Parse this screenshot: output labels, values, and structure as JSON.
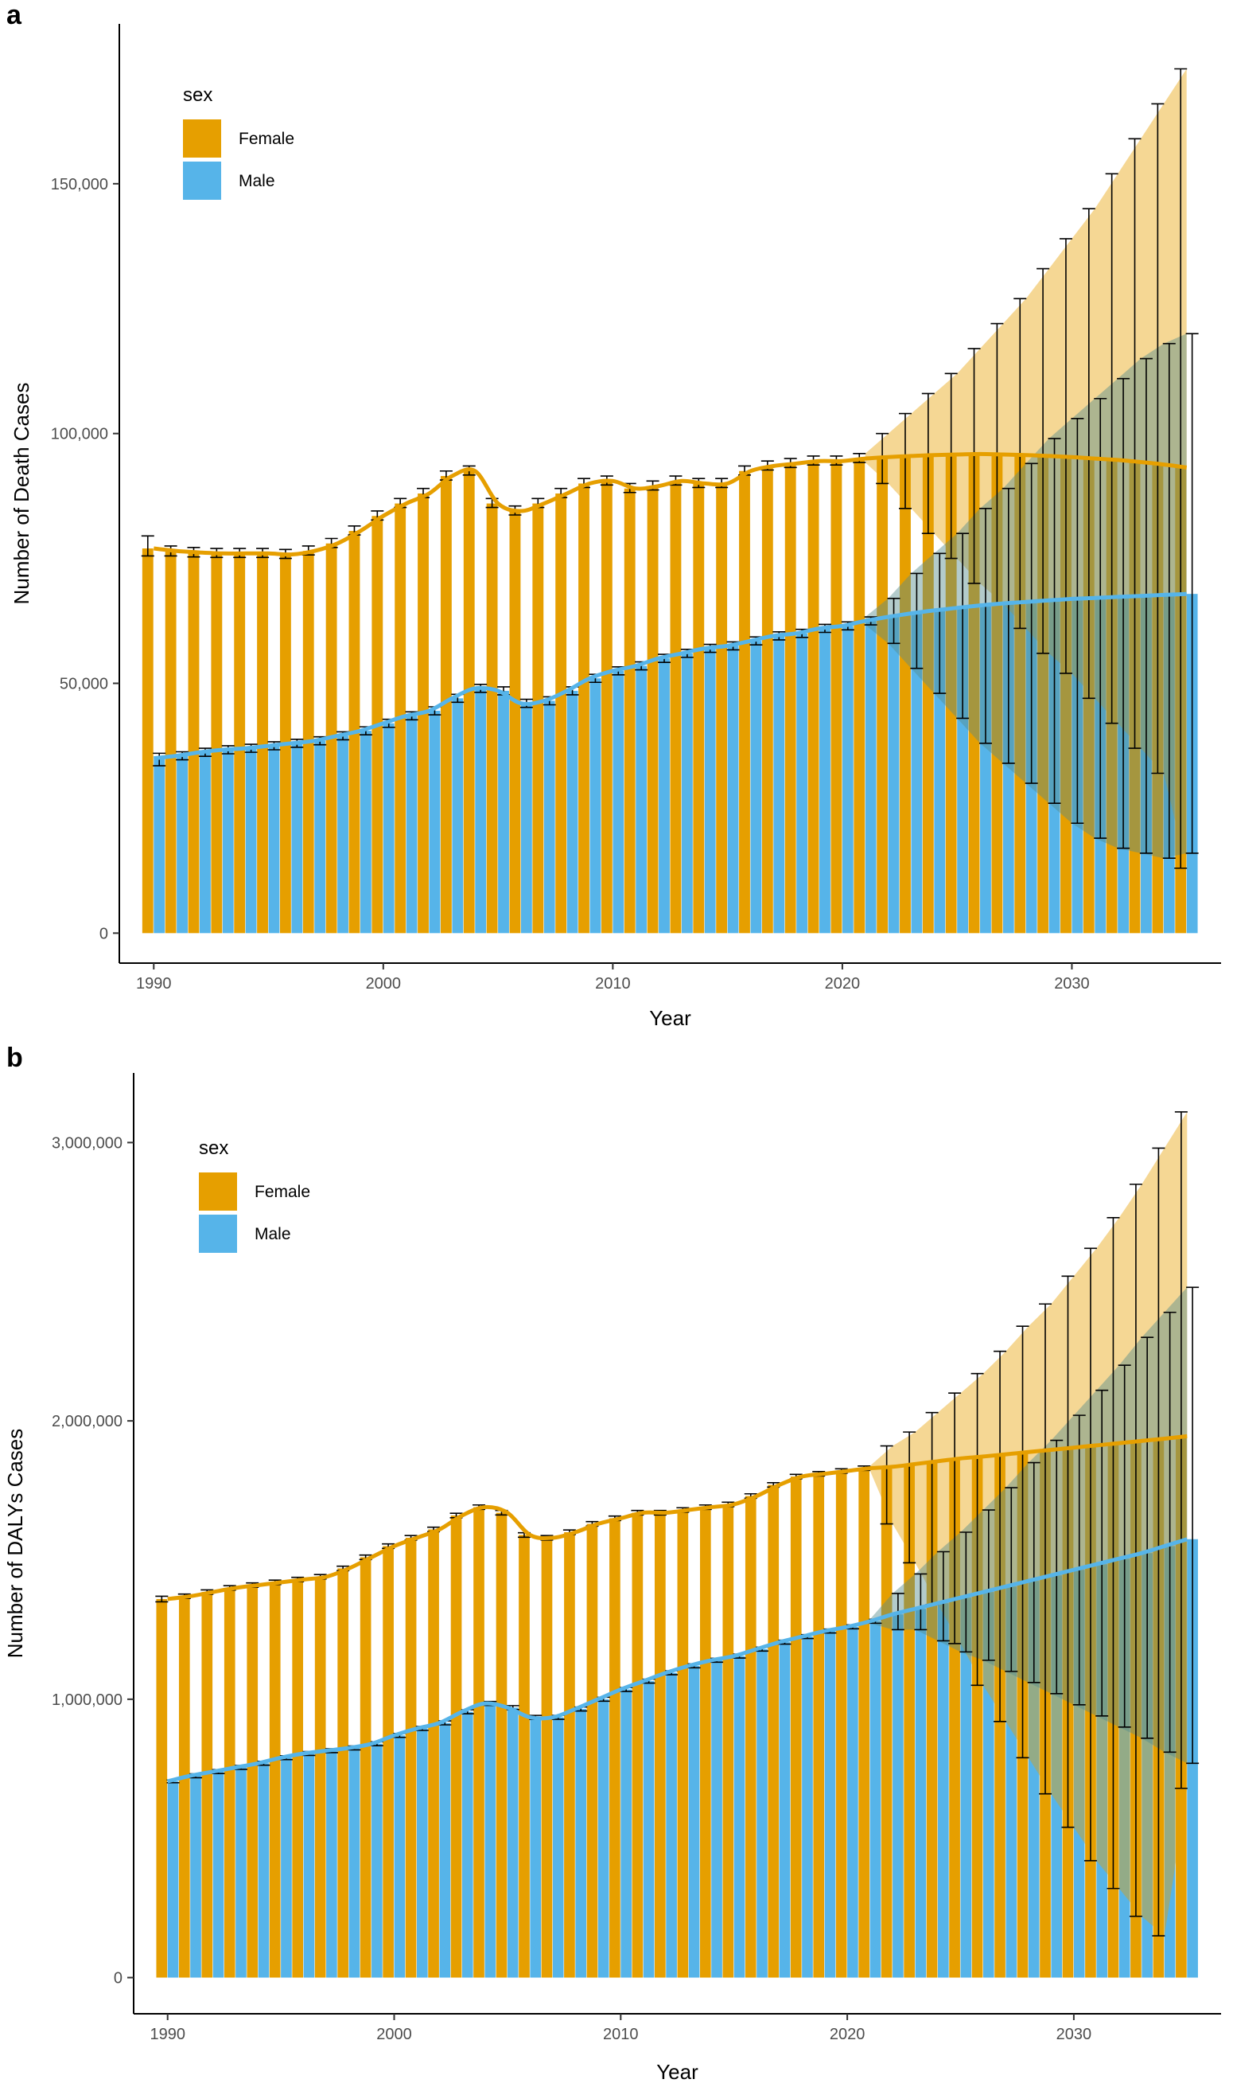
{
  "chart_data": [
    {
      "panel": "a",
      "type": "bar",
      "xlabel": "Year",
      "ylabel": "Number of Death Cases",
      "xticks": [
        1990,
        2000,
        2010,
        2020,
        2030
      ],
      "xtick_labels": [
        "1990",
        "2000",
        "2010",
        "2020",
        "2030"
      ],
      "yticks": [
        0,
        50000,
        100000,
        150000
      ],
      "ytick_labels": [
        "0",
        "50,000",
        "100,000",
        "150,000"
      ],
      "xlim": [
        1988.5,
        2036.5
      ],
      "ylim": [
        -6000,
        182000
      ],
      "legend": {
        "title": "sex",
        "position": "top-left",
        "entries": [
          "Female",
          "Male"
        ]
      },
      "colors": {
        "Female": "#E69F00",
        "Male": "#56B4E9"
      },
      "x": [
        1990,
        1991,
        1992,
        1993,
        1994,
        1995,
        1996,
        1997,
        1998,
        1999,
        2000,
        2001,
        2002,
        2003,
        2004,
        2005,
        2006,
        2007,
        2008,
        2009,
        2010,
        2011,
        2012,
        2013,
        2014,
        2015,
        2016,
        2017,
        2018,
        2019,
        2020,
        2021,
        2022,
        2023,
        2024,
        2025,
        2026,
        2027,
        2028,
        2029,
        2030,
        2031,
        2032,
        2033,
        2034,
        2035
      ],
      "series": [
        {
          "name": "Female",
          "values": [
            77000,
            76500,
            76200,
            76000,
            76000,
            76000,
            75800,
            76500,
            78000,
            80500,
            83500,
            86000,
            88000,
            91500,
            92500,
            86000,
            84500,
            86000,
            88000,
            90000,
            90500,
            89000,
            89500,
            90500,
            90000,
            90000,
            92500,
            93500,
            94000,
            94500,
            94500,
            95000,
            95300,
            95500,
            95700,
            95800,
            95900,
            95800,
            95700,
            95500,
            95300,
            95000,
            94700,
            94300,
            93800,
            93200
          ],
          "lower": [
            75500,
            75500,
            75300,
            75200,
            75200,
            75200,
            75000,
            75700,
            77200,
            79700,
            82700,
            85200,
            87200,
            90700,
            91700,
            85200,
            83700,
            85200,
            87200,
            89200,
            89700,
            88200,
            88700,
            89700,
            89200,
            89200,
            91700,
            92700,
            93200,
            93700,
            93700,
            94200,
            90000,
            85000,
            80000,
            75000,
            70000,
            66000,
            61000,
            56000,
            52000,
            47000,
            42000,
            37000,
            32000,
            13000
          ],
          "upper": [
            79500,
            77500,
            77200,
            77000,
            77000,
            77000,
            76800,
            77500,
            79000,
            81500,
            84500,
            87000,
            89000,
            92500,
            93500,
            87000,
            85500,
            87000,
            89000,
            91000,
            91500,
            90000,
            90500,
            91500,
            91000,
            91000,
            93500,
            94500,
            95000,
            95500,
            95500,
            96000,
            100000,
            104000,
            108000,
            112000,
            117000,
            122000,
            127000,
            133000,
            139000,
            145000,
            152000,
            159000,
            166000,
            173000
          ]
        },
        {
          "name": "Male",
          "values": [
            35000,
            35500,
            36200,
            36700,
            37000,
            37500,
            38000,
            38500,
            39500,
            40500,
            42000,
            43500,
            44500,
            47000,
            49000,
            48500,
            46000,
            46500,
            48500,
            51000,
            52500,
            53500,
            55000,
            56000,
            57000,
            57500,
            58500,
            59500,
            60000,
            61000,
            61500,
            62500,
            63300,
            64000,
            64600,
            65100,
            65600,
            66000,
            66300,
            66600,
            66900,
            67100,
            67300,
            67500,
            67700,
            67900
          ],
          "lower": [
            33500,
            34700,
            35400,
            35900,
            36200,
            36700,
            37200,
            37700,
            38700,
            39700,
            41200,
            42700,
            43700,
            46200,
            48200,
            47700,
            45200,
            45700,
            47700,
            50200,
            51700,
            52700,
            54200,
            55200,
            56200,
            56700,
            57700,
            58700,
            59200,
            60200,
            60700,
            61700,
            58000,
            53000,
            48000,
            43000,
            38000,
            34000,
            30000,
            26000,
            22000,
            19000,
            17000,
            16000,
            15000,
            16000
          ],
          "upper": [
            36000,
            36300,
            37000,
            37500,
            37800,
            38300,
            38800,
            39300,
            40300,
            41300,
            42800,
            44300,
            45300,
            47800,
            49800,
            49300,
            46800,
            47300,
            49300,
            51800,
            53300,
            54300,
            55800,
            56800,
            57800,
            58300,
            59300,
            60300,
            60800,
            61800,
            62300,
            63300,
            67000,
            72000,
            76000,
            80000,
            85000,
            89000,
            94000,
            99000,
            103000,
            107000,
            111000,
            115000,
            118000,
            120000
          ]
        }
      ]
    },
    {
      "panel": "b",
      "type": "bar",
      "xlabel": "Year",
      "ylabel": "Number of DALYs Cases",
      "xticks": [
        1990,
        2000,
        2010,
        2020,
        2030
      ],
      "xtick_labels": [
        "1990",
        "2000",
        "2010",
        "2020",
        "2030"
      ],
      "yticks": [
        0,
        1000000,
        2000000,
        3000000
      ],
      "ytick_labels": [
        "0",
        "1,000,000",
        "2,000,000",
        "3,000,000"
      ],
      "xlim": [
        1988.5,
        2036.5
      ],
      "ylim": [
        -130000,
        3250000
      ],
      "legend": {
        "title": "sex",
        "position": "top-left",
        "entries": [
          "Female",
          "Male"
        ]
      },
      "colors": {
        "Female": "#E69F00",
        "Male": "#56B4E9"
      },
      "x": [
        1990,
        1991,
        1992,
        1993,
        1994,
        1995,
        1996,
        1997,
        1998,
        1999,
        2000,
        2001,
        2002,
        2003,
        2004,
        2005,
        2006,
        2007,
        2008,
        2009,
        2010,
        2011,
        2012,
        2013,
        2014,
        2015,
        2016,
        2017,
        2018,
        2019,
        2020,
        2021,
        2022,
        2023,
        2024,
        2025,
        2026,
        2027,
        2028,
        2029,
        2030,
        2031,
        2032,
        2033,
        2034,
        2035
      ],
      "series": [
        {
          "name": "Female",
          "values": [
            1360000,
            1370000,
            1385000,
            1400000,
            1410000,
            1420000,
            1430000,
            1440000,
            1470000,
            1510000,
            1550000,
            1580000,
            1610000,
            1660000,
            1690000,
            1670000,
            1590000,
            1580000,
            1600000,
            1630000,
            1650000,
            1670000,
            1670000,
            1680000,
            1690000,
            1700000,
            1730000,
            1770000,
            1800000,
            1810000,
            1820000,
            1830000,
            1835000,
            1845000,
            1855000,
            1865000,
            1872000,
            1880000,
            1888000,
            1896000,
            1904000,
            1912000,
            1920000,
            1928000,
            1936000,
            1945000
          ],
          "lower": [
            1350000,
            1362000,
            1377000,
            1392000,
            1402000,
            1412000,
            1422000,
            1432000,
            1462000,
            1502000,
            1542000,
            1572000,
            1602000,
            1652000,
            1682000,
            1662000,
            1582000,
            1572000,
            1592000,
            1622000,
            1642000,
            1662000,
            1662000,
            1672000,
            1682000,
            1692000,
            1722000,
            1762000,
            1792000,
            1802000,
            1812000,
            1822000,
            1630000,
            1490000,
            1340000,
            1200000,
            1050000,
            920000,
            790000,
            660000,
            540000,
            420000,
            320000,
            220000,
            150000,
            680000
          ],
          "upper": [
            1370000,
            1378000,
            1393000,
            1408000,
            1418000,
            1428000,
            1438000,
            1448000,
            1478000,
            1518000,
            1558000,
            1588000,
            1618000,
            1668000,
            1698000,
            1678000,
            1598000,
            1588000,
            1608000,
            1638000,
            1658000,
            1678000,
            1678000,
            1688000,
            1698000,
            1708000,
            1738000,
            1778000,
            1808000,
            1818000,
            1828000,
            1838000,
            1910000,
            1960000,
            2030000,
            2100000,
            2170000,
            2250000,
            2340000,
            2420000,
            2520000,
            2620000,
            2730000,
            2850000,
            2980000,
            3110000
          ]
        },
        {
          "name": "Male",
          "values": [
            705000,
            725000,
            740000,
            755000,
            770000,
            790000,
            805000,
            815000,
            825000,
            840000,
            870000,
            895000,
            915000,
            955000,
            985000,
            970000,
            935000,
            935000,
            965000,
            1000000,
            1035000,
            1065000,
            1095000,
            1120000,
            1140000,
            1155000,
            1180000,
            1205000,
            1225000,
            1245000,
            1260000,
            1280000,
            1305000,
            1325000,
            1345000,
            1365000,
            1385000,
            1405000,
            1425000,
            1445000,
            1465000,
            1485000,
            1505000,
            1525000,
            1550000,
            1575000
          ],
          "lower": [
            700000,
            718000,
            733000,
            748000,
            763000,
            783000,
            798000,
            808000,
            818000,
            833000,
            863000,
            888000,
            908000,
            948000,
            978000,
            963000,
            928000,
            928000,
            958000,
            993000,
            1028000,
            1058000,
            1088000,
            1113000,
            1133000,
            1148000,
            1173000,
            1198000,
            1218000,
            1238000,
            1253000,
            1273000,
            1250000,
            1250000,
            1210000,
            1170000,
            1140000,
            1100000,
            1060000,
            1020000,
            980000,
            940000,
            900000,
            860000,
            810000,
            770000
          ],
          "upper": [
            710000,
            732000,
            747000,
            762000,
            777000,
            797000,
            812000,
            822000,
            832000,
            847000,
            877000,
            902000,
            922000,
            962000,
            992000,
            977000,
            942000,
            942000,
            972000,
            1007000,
            1042000,
            1072000,
            1102000,
            1127000,
            1147000,
            1162000,
            1187000,
            1212000,
            1232000,
            1252000,
            1267000,
            1287000,
            1380000,
            1450000,
            1530000,
            1600000,
            1680000,
            1760000,
            1850000,
            1930000,
            2020000,
            2110000,
            2200000,
            2300000,
            2390000,
            2480000
          ]
        }
      ]
    }
  ],
  "panels": {
    "a": {
      "letter": "a"
    },
    "b": {
      "letter": "b"
    }
  }
}
